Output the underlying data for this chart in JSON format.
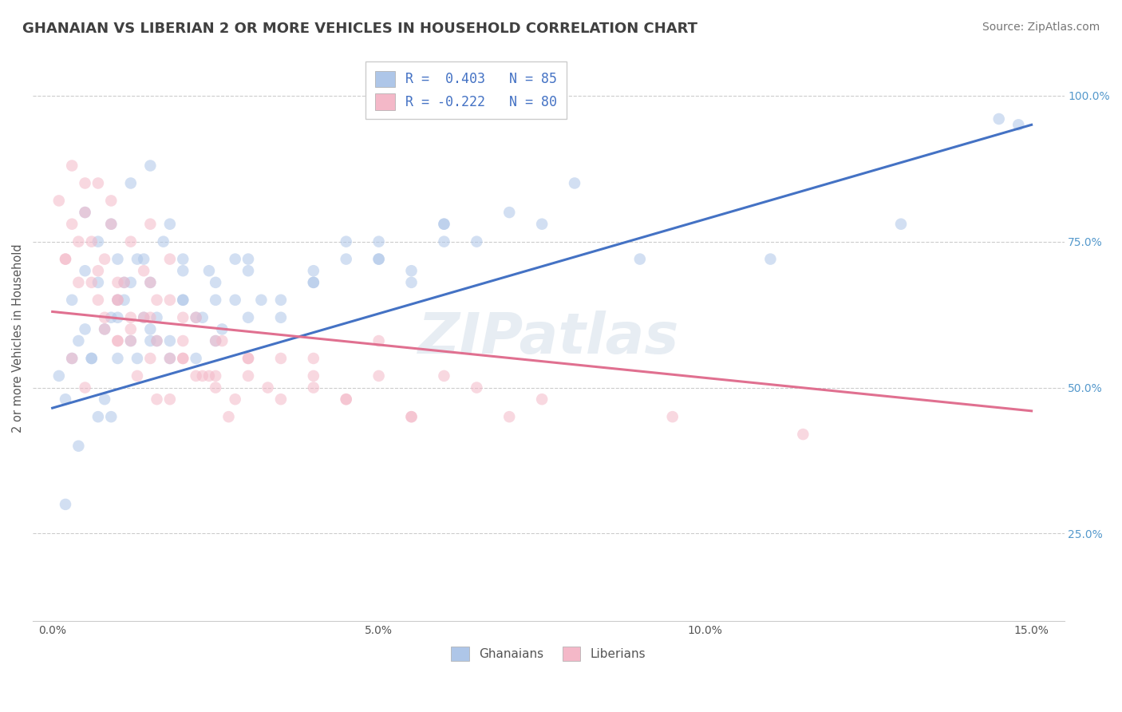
{
  "title": "GHANAIAN VS LIBERIAN 2 OR MORE VEHICLES IN HOUSEHOLD CORRELATION CHART",
  "source_text": "Source: ZipAtlas.com",
  "ylabel": "2 or more Vehicles in Household",
  "watermark": "ZIPatlas",
  "legend_entries": [
    {
      "label": "R =  0.403   N = 85",
      "color": "#aec6e8"
    },
    {
      "label": "R = -0.222   N = 80",
      "color": "#f4b8c8"
    }
  ],
  "ghanaian_color": "#aec6e8",
  "liberian_color": "#f4b8c8",
  "ghanaian_line_color": "#4472c4",
  "liberian_line_color": "#e07090",
  "title_color": "#404040",
  "title_fontsize": 13,
  "source_fontsize": 10,
  "xlim": [
    -0.3,
    15.5
  ],
  "ylim": [
    10,
    107
  ],
  "yticks_right": [
    25.0,
    50.0,
    75.0,
    100.0
  ],
  "xticks": [
    0.0,
    5.0,
    10.0,
    15.0
  ],
  "xtick_labels": [
    "0.0%",
    "5.0%",
    "10.0%",
    "15.0%"
  ],
  "ytick_labels_right": [
    "25.0%",
    "50.0%",
    "75.0%",
    "100.0%"
  ],
  "background_color": "#ffffff",
  "grid_color": "#cccccc",
  "scatter_alpha": 0.55,
  "scatter_size": 110,
  "ghanaian_x": [
    0.1,
    0.2,
    0.3,
    0.4,
    0.5,
    0.6,
    0.7,
    0.8,
    0.9,
    1.0,
    0.5,
    0.7,
    0.9,
    1.1,
    1.2,
    1.3,
    1.4,
    1.5,
    1.6,
    1.7,
    1.0,
    1.2,
    1.4,
    1.6,
    1.8,
    2.0,
    2.2,
    2.4,
    2.6,
    2.8,
    0.8,
    1.0,
    1.2,
    1.5,
    1.8,
    2.0,
    2.3,
    2.5,
    2.8,
    3.0,
    1.5,
    2.0,
    2.5,
    3.0,
    3.5,
    4.0,
    4.5,
    5.0,
    5.5,
    6.0,
    3.5,
    4.0,
    4.5,
    5.0,
    5.5,
    6.0,
    6.5,
    7.0,
    7.5,
    8.0,
    0.3,
    0.5,
    1.0,
    1.5,
    2.0,
    2.5,
    3.0,
    4.0,
    5.0,
    6.0,
    9.0,
    11.0,
    13.0,
    14.5,
    14.8,
    0.4,
    0.6,
    0.9,
    1.1,
    1.3,
    0.2,
    0.7,
    1.8,
    2.2,
    3.2
  ],
  "ghanaian_y": [
    52,
    48,
    65,
    58,
    70,
    55,
    75,
    60,
    45,
    72,
    80,
    68,
    78,
    65,
    85,
    72,
    62,
    88,
    58,
    75,
    55,
    68,
    72,
    62,
    78,
    65,
    55,
    70,
    60,
    72,
    48,
    62,
    58,
    68,
    55,
    72,
    62,
    58,
    65,
    70,
    60,
    65,
    68,
    72,
    65,
    70,
    75,
    72,
    68,
    78,
    62,
    68,
    72,
    75,
    70,
    78,
    75,
    80,
    78,
    85,
    55,
    60,
    65,
    58,
    70,
    65,
    62,
    68,
    72,
    75,
    72,
    72,
    78,
    96,
    95,
    40,
    55,
    62,
    68,
    55,
    30,
    45,
    58,
    62,
    65
  ],
  "liberian_x": [
    0.1,
    0.2,
    0.3,
    0.4,
    0.5,
    0.6,
    0.7,
    0.8,
    0.9,
    1.0,
    0.3,
    0.5,
    0.7,
    0.9,
    1.1,
    1.2,
    1.4,
    1.5,
    1.6,
    1.8,
    0.8,
    1.0,
    1.2,
    1.4,
    1.6,
    1.8,
    2.0,
    2.2,
    2.4,
    2.6,
    1.0,
    1.2,
    1.5,
    1.8,
    2.0,
    2.3,
    2.5,
    2.8,
    3.0,
    3.3,
    1.5,
    2.0,
    2.5,
    3.0,
    3.5,
    4.0,
    4.5,
    5.0,
    5.5,
    6.0,
    3.5,
    4.0,
    4.5,
    5.0,
    5.5,
    6.5,
    7.0,
    7.5,
    9.5,
    11.5,
    0.2,
    0.4,
    0.6,
    0.8,
    1.0,
    1.3,
    1.6,
    2.0,
    2.5,
    3.0,
    0.3,
    0.5,
    0.7,
    1.0,
    1.2,
    1.5,
    1.8,
    2.2,
    2.7,
    4.0
  ],
  "liberian_y": [
    82,
    72,
    88,
    75,
    80,
    68,
    85,
    72,
    78,
    65,
    78,
    85,
    70,
    82,
    68,
    75,
    62,
    78,
    65,
    72,
    60,
    68,
    62,
    70,
    58,
    65,
    55,
    62,
    52,
    58,
    65,
    58,
    68,
    55,
    62,
    52,
    58,
    48,
    55,
    50,
    62,
    58,
    52,
    55,
    48,
    52,
    48,
    58,
    45,
    52,
    55,
    50,
    48,
    52,
    45,
    50,
    45,
    48,
    45,
    42,
    72,
    68,
    75,
    62,
    58,
    52,
    48,
    55,
    50,
    52,
    55,
    50,
    65,
    58,
    60,
    55,
    48,
    52,
    45,
    55
  ],
  "ghanaian_line": {
    "x0": 0.0,
    "y0": 46.5,
    "x1": 15.0,
    "y1": 95.0
  },
  "liberian_line": {
    "x0": 0.0,
    "y0": 63.0,
    "x1": 15.0,
    "y1": 46.0
  }
}
